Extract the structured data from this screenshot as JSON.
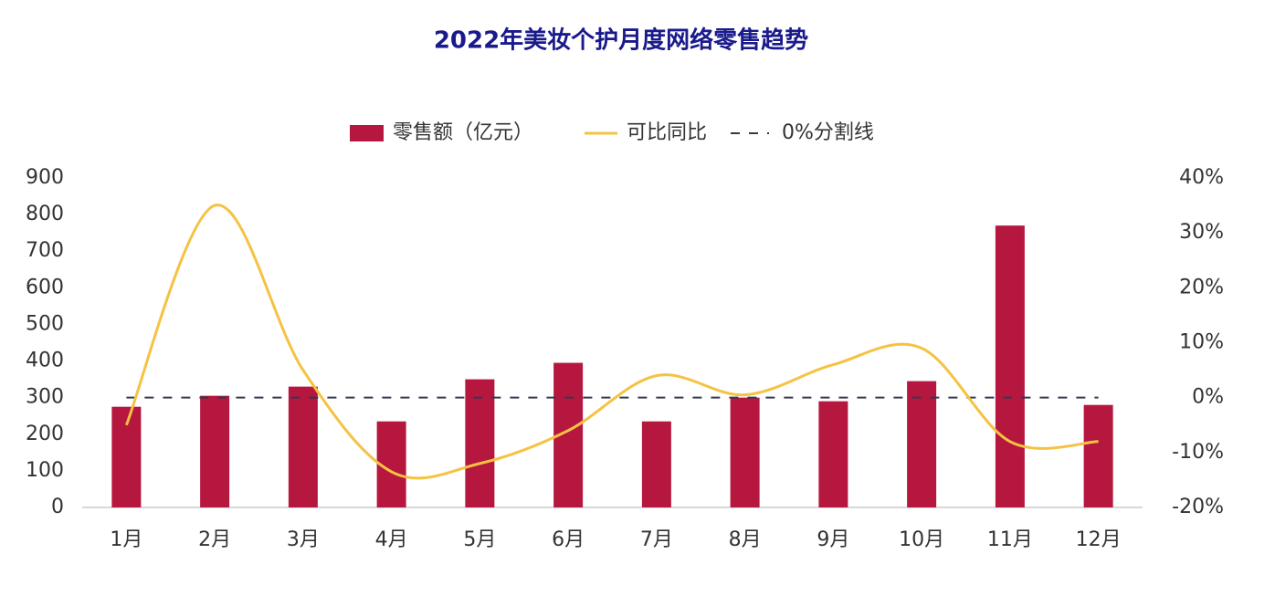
{
  "chart_data": {
    "type": "bar-line",
    "title": "2022年美妆个护月度网络零售趋势",
    "categories": [
      "1月",
      "2月",
      "3月",
      "4月",
      "5月",
      "6月",
      "7月",
      "8月",
      "9月",
      "10月",
      "11月",
      "12月"
    ],
    "series": [
      {
        "name": "零售额（亿元）",
        "type": "bar",
        "color": "#b5173f",
        "values": [
          275,
          305,
          330,
          235,
          350,
          395,
          235,
          300,
          290,
          345,
          770,
          280
        ]
      },
      {
        "name": "可比同比",
        "type": "line",
        "axis": "y2",
        "color": "#f5c242",
        "values": [
          -5,
          35,
          5,
          -13.5,
          -12,
          -6,
          4,
          0.5,
          6,
          9,
          -8,
          -8
        ]
      }
    ],
    "reference_line": {
      "name": "0%分割线",
      "value": 0,
      "axis": "y2",
      "color": "#333a4d"
    },
    "ylim": [
      0,
      900
    ],
    "yticks": [
      0,
      100,
      200,
      300,
      400,
      500,
      600,
      700,
      800,
      900
    ],
    "y2lim": [
      -20,
      40
    ],
    "y2ticks": [
      {
        "value": -20,
        "label": "-20%"
      },
      {
        "value": -10,
        "label": "-10%"
      },
      {
        "value": 0,
        "label": "0%"
      },
      {
        "value": 10,
        "label": "10%"
      },
      {
        "value": 20,
        "label": "20%"
      },
      {
        "value": 30,
        "label": "30%"
      },
      {
        "value": 40,
        "label": "40%"
      }
    ],
    "grid": false
  }
}
